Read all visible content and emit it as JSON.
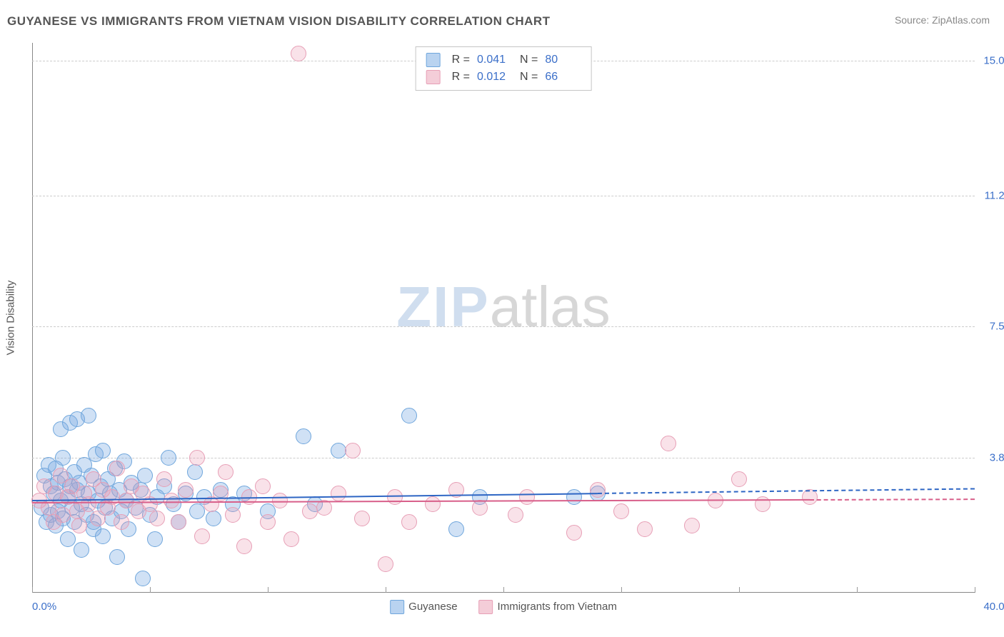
{
  "header": {
    "title": "GUYANESE VS IMMIGRANTS FROM VIETNAM VISION DISABILITY CORRELATION CHART",
    "source_label": "Source: ",
    "source_name": "ZipAtlas.com"
  },
  "watermark": {
    "zip": "ZIP",
    "atlas": "atlas"
  },
  "chart": {
    "type": "scatter",
    "ylabel": "Vision Disability",
    "xlim": [
      0.0,
      40.0
    ],
    "ylim": [
      0.0,
      15.5
    ],
    "x_ticks_labels": {
      "min": "0.0%",
      "max": "40.0%"
    },
    "y_ticks": [
      {
        "v": 3.8,
        "label": "3.8%"
      },
      {
        "v": 7.5,
        "label": "7.5%"
      },
      {
        "v": 11.2,
        "label": "11.2%"
      },
      {
        "v": 15.0,
        "label": "15.0%"
      }
    ],
    "x_minor_tick_step": 5.0,
    "background_color": "#ffffff",
    "grid_color": "#cccccc",
    "label_fontsize": 15,
    "tick_fontsize": 15,
    "tick_color": "#3b6fc9",
    "series": [
      {
        "id": "guyanese",
        "label": "Guyanese",
        "fill_color": "rgba(120,170,225,0.35)",
        "stroke_color": "#6fa6dc",
        "marker_radius": 11,
        "swatch_fill": "#b9d3f0",
        "swatch_border": "#6fa6dc",
        "trend": {
          "y_start": 2.62,
          "y_end": 2.95,
          "color": "#2e66c4",
          "width": 2,
          "solid_until_x": 24.0
        },
        "r": "0.041",
        "n": "80",
        "points": [
          [
            0.4,
            2.4
          ],
          [
            0.5,
            3.3
          ],
          [
            0.6,
            2.0
          ],
          [
            0.7,
            3.6
          ],
          [
            0.8,
            3.0
          ],
          [
            0.8,
            2.2
          ],
          [
            0.9,
            2.8
          ],
          [
            1.0,
            1.9
          ],
          [
            1.0,
            3.5
          ],
          [
            1.1,
            3.1
          ],
          [
            1.1,
            2.3
          ],
          [
            1.2,
            4.6
          ],
          [
            1.2,
            2.6
          ],
          [
            1.3,
            3.8
          ],
          [
            1.3,
            2.1
          ],
          [
            1.4,
            3.2
          ],
          [
            1.5,
            2.7
          ],
          [
            1.5,
            1.5
          ],
          [
            1.6,
            3.0
          ],
          [
            1.6,
            4.8
          ],
          [
            1.7,
            2.4
          ],
          [
            1.8,
            3.4
          ],
          [
            1.8,
            2.0
          ],
          [
            1.9,
            2.9
          ],
          [
            1.9,
            4.9
          ],
          [
            2.0,
            3.1
          ],
          [
            2.1,
            2.5
          ],
          [
            2.1,
            1.2
          ],
          [
            2.2,
            3.6
          ],
          [
            2.3,
            2.2
          ],
          [
            2.4,
            2.8
          ],
          [
            2.4,
            5.0
          ],
          [
            2.5,
            3.3
          ],
          [
            2.6,
            2.0
          ],
          [
            2.6,
            1.8
          ],
          [
            2.7,
            3.9
          ],
          [
            2.8,
            2.6
          ],
          [
            2.9,
            3.0
          ],
          [
            3.0,
            1.6
          ],
          [
            3.0,
            4.0
          ],
          [
            3.1,
            2.4
          ],
          [
            3.2,
            3.2
          ],
          [
            3.3,
            2.8
          ],
          [
            3.4,
            2.1
          ],
          [
            3.5,
            3.5
          ],
          [
            3.6,
            1.0
          ],
          [
            3.7,
            2.9
          ],
          [
            3.8,
            2.3
          ],
          [
            3.9,
            3.7
          ],
          [
            4.0,
            2.6
          ],
          [
            4.1,
            1.8
          ],
          [
            4.2,
            3.1
          ],
          [
            4.4,
            2.4
          ],
          [
            4.6,
            2.9
          ],
          [
            4.7,
            0.4
          ],
          [
            4.8,
            3.3
          ],
          [
            5.0,
            2.2
          ],
          [
            5.2,
            1.5
          ],
          [
            5.3,
            2.7
          ],
          [
            5.6,
            3.0
          ],
          [
            5.8,
            3.8
          ],
          [
            6.0,
            2.5
          ],
          [
            6.2,
            2.0
          ],
          [
            6.5,
            2.8
          ],
          [
            6.9,
            3.4
          ],
          [
            7.0,
            2.3
          ],
          [
            7.3,
            2.7
          ],
          [
            7.7,
            2.1
          ],
          [
            8.0,
            2.9
          ],
          [
            8.5,
            2.5
          ],
          [
            9.0,
            2.8
          ],
          [
            10.0,
            2.3
          ],
          [
            11.5,
            4.4
          ],
          [
            12.0,
            2.5
          ],
          [
            13.0,
            4.0
          ],
          [
            16.0,
            5.0
          ],
          [
            18.0,
            1.8
          ],
          [
            19.0,
            2.7
          ],
          [
            23.0,
            2.7
          ],
          [
            24.0,
            2.8
          ]
        ]
      },
      {
        "id": "vietnam",
        "label": "Immigrants from Vietnam",
        "fill_color": "rgba(235,150,175,0.28)",
        "stroke_color": "#e79fb6",
        "marker_radius": 11,
        "swatch_fill": "#f4cdd8",
        "swatch_border": "#e79fb6",
        "trend": {
          "y_start": 2.55,
          "y_end": 2.65,
          "color": "#d85f8a",
          "width": 2,
          "solid_until_x": 33.0
        },
        "r": "0.012",
        "n": "66",
        "points": [
          [
            0.3,
            2.6
          ],
          [
            0.5,
            3.0
          ],
          [
            0.7,
            2.4
          ],
          [
            0.9,
            2.0
          ],
          [
            1.0,
            2.8
          ],
          [
            1.2,
            3.3
          ],
          [
            1.3,
            2.2
          ],
          [
            1.5,
            2.7
          ],
          [
            1.7,
            3.0
          ],
          [
            1.9,
            2.3
          ],
          [
            2.0,
            1.9
          ],
          [
            2.2,
            2.8
          ],
          [
            2.4,
            2.5
          ],
          [
            2.6,
            3.2
          ],
          [
            2.8,
            2.1
          ],
          [
            3.0,
            2.9
          ],
          [
            3.2,
            2.4
          ],
          [
            3.4,
            2.7
          ],
          [
            3.6,
            3.5
          ],
          [
            3.8,
            2.0
          ],
          [
            4.0,
            2.6
          ],
          [
            4.2,
            3.0
          ],
          [
            4.5,
            2.3
          ],
          [
            4.7,
            2.8
          ],
          [
            5.0,
            2.5
          ],
          [
            5.3,
            2.1
          ],
          [
            5.6,
            3.2
          ],
          [
            5.9,
            2.6
          ],
          [
            6.2,
            2.0
          ],
          [
            6.5,
            2.9
          ],
          [
            7.0,
            3.8
          ],
          [
            7.2,
            1.6
          ],
          [
            7.6,
            2.5
          ],
          [
            8.0,
            2.8
          ],
          [
            8.2,
            3.4
          ],
          [
            8.5,
            2.2
          ],
          [
            9.0,
            1.3
          ],
          [
            9.2,
            2.7
          ],
          [
            9.8,
            3.0
          ],
          [
            10.0,
            2.0
          ],
          [
            10.5,
            2.6
          ],
          [
            11.0,
            1.5
          ],
          [
            11.3,
            15.2
          ],
          [
            11.8,
            2.3
          ],
          [
            12.4,
            2.4
          ],
          [
            13.0,
            2.8
          ],
          [
            13.6,
            4.0
          ],
          [
            14.0,
            2.1
          ],
          [
            15.0,
            0.8
          ],
          [
            15.4,
            2.7
          ],
          [
            16.0,
            2.0
          ],
          [
            17.0,
            2.5
          ],
          [
            18.0,
            2.9
          ],
          [
            19.0,
            2.4
          ],
          [
            20.5,
            2.2
          ],
          [
            21.0,
            2.7
          ],
          [
            23.0,
            1.7
          ],
          [
            24.0,
            2.9
          ],
          [
            25.0,
            2.3
          ],
          [
            26.0,
            1.8
          ],
          [
            27.0,
            4.2
          ],
          [
            28.0,
            1.9
          ],
          [
            29.0,
            2.6
          ],
          [
            30.0,
            3.2
          ],
          [
            31.0,
            2.5
          ],
          [
            33.0,
            2.7
          ]
        ]
      }
    ],
    "top_legend": {
      "R_label": "R",
      "N_label": "N",
      "equals": "="
    }
  }
}
